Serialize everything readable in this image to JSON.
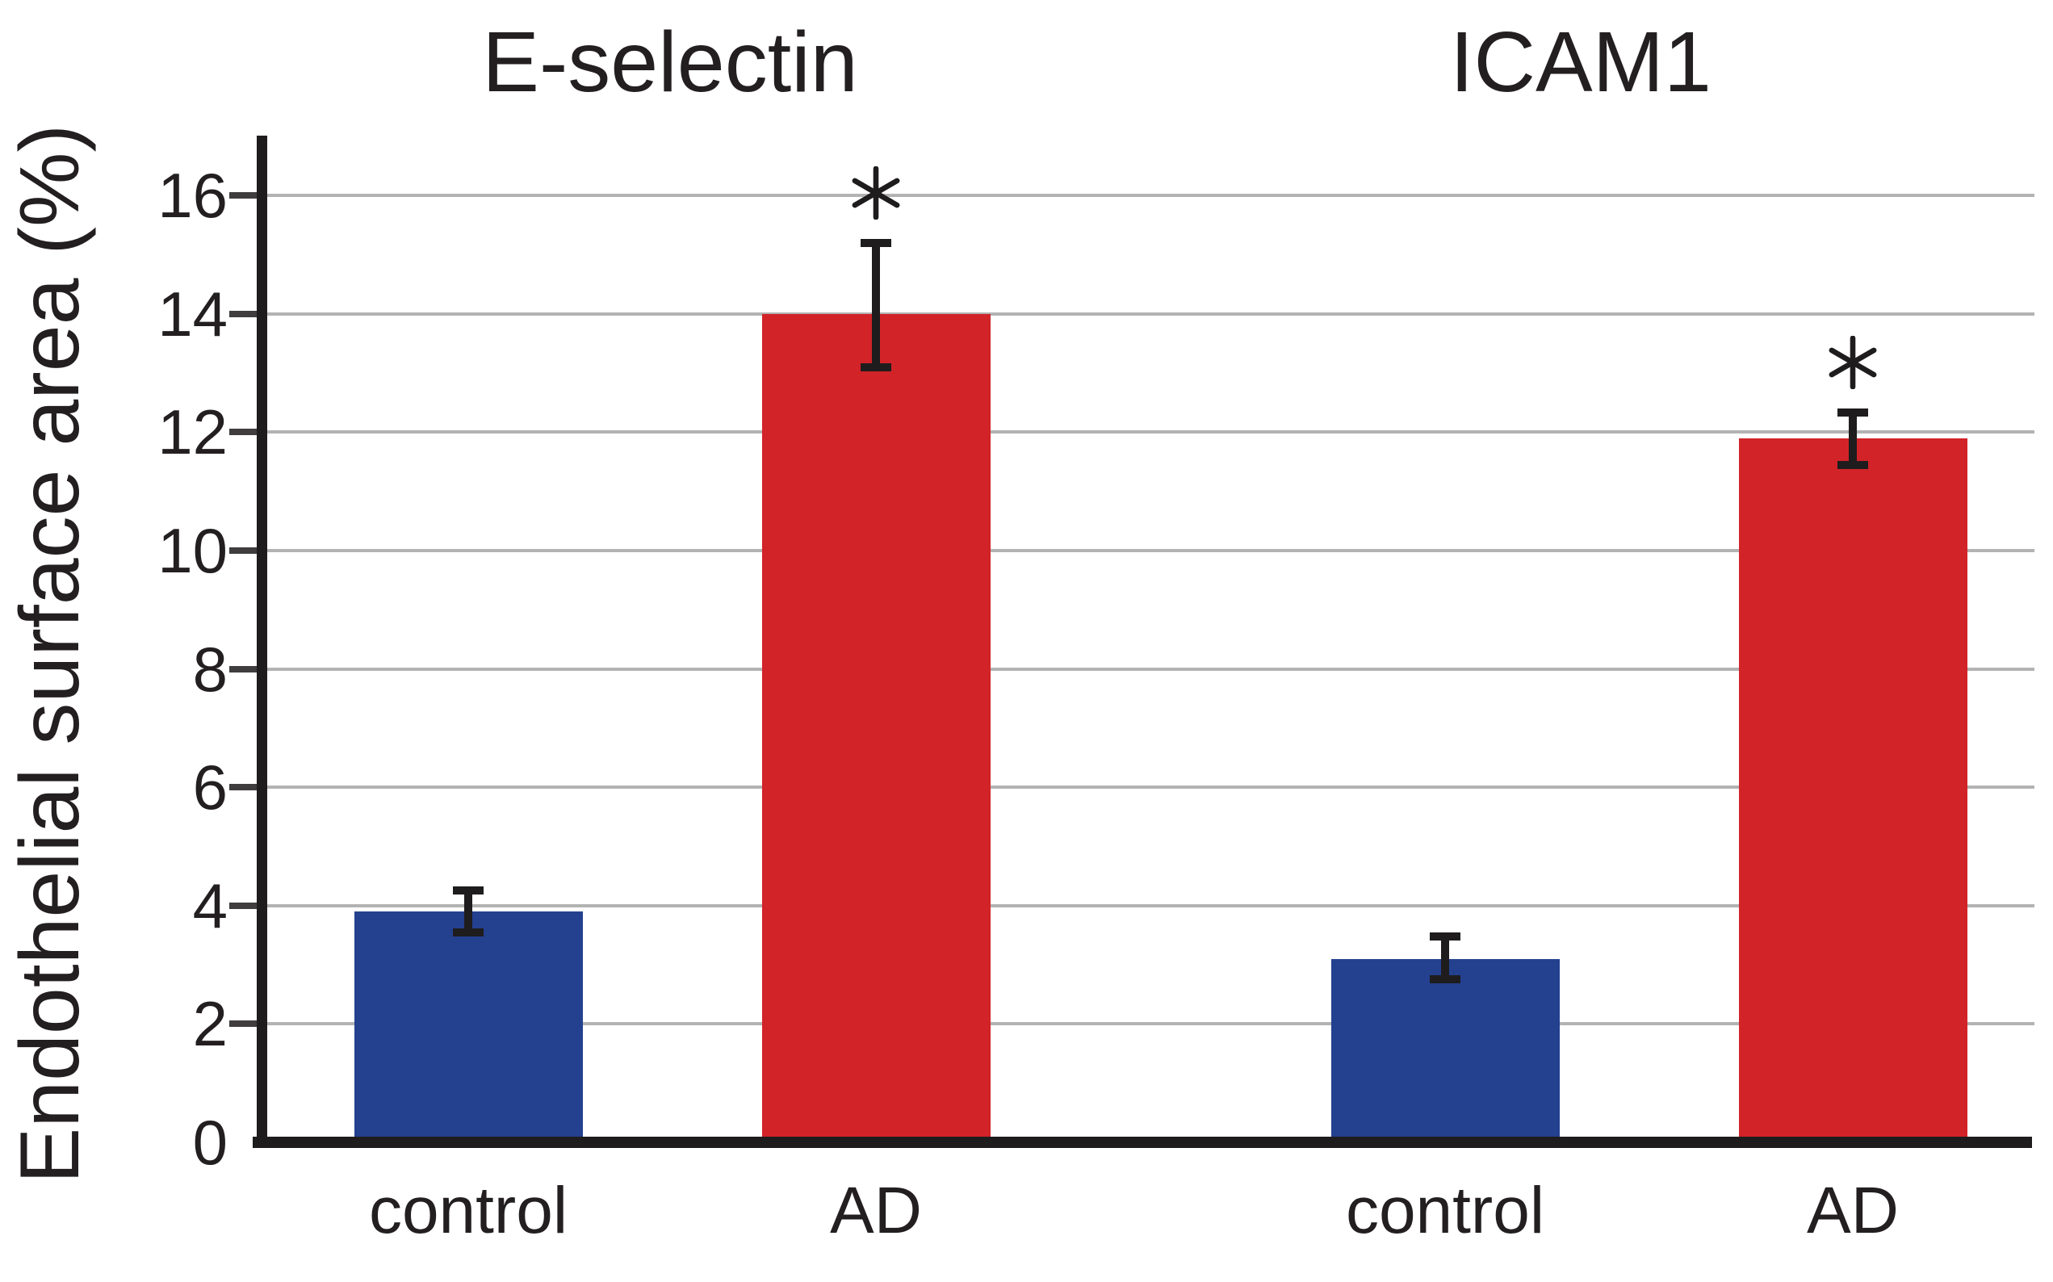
{
  "figure": {
    "y_axis_label": "Endothelial surface area (%)",
    "significance_marker": "*",
    "colors": {
      "control_bar": "#24418f",
      "ad_bar": "#d22328",
      "gridline": "#b3b3b3",
      "axis": "#1e1c1d",
      "text": "#231f20"
    }
  },
  "chart_data": {
    "type": "bar",
    "title": "",
    "xlabel": "",
    "ylabel": "Endothelial surface area (%)",
    "ylim": [
      0,
      17
    ],
    "yticks": [
      0,
      2,
      4,
      6,
      8,
      10,
      12,
      14,
      16
    ],
    "grid": true,
    "legend_position": "none",
    "groups": [
      {
        "title": "E-selectin",
        "bars": [
          {
            "label": "control",
            "series": "control",
            "value": 3.9,
            "error_up": 0.35,
            "error_down": 0.35,
            "color": "#24418f",
            "significant": false
          },
          {
            "label": "AD",
            "series": "AD",
            "value": 14.0,
            "error_up": 1.2,
            "error_down": 0.9,
            "color": "#d22328",
            "significant": true
          }
        ]
      },
      {
        "title": "ICAM1",
        "bars": [
          {
            "label": "control",
            "series": "control",
            "value": 3.1,
            "error_up": 0.38,
            "error_down": 0.34,
            "color": "#24418f",
            "significant": false
          },
          {
            "label": "AD",
            "series": "AD",
            "value": 11.9,
            "error_up": 0.43,
            "error_down": 0.45,
            "color": "#d22328",
            "significant": true
          }
        ]
      }
    ]
  }
}
